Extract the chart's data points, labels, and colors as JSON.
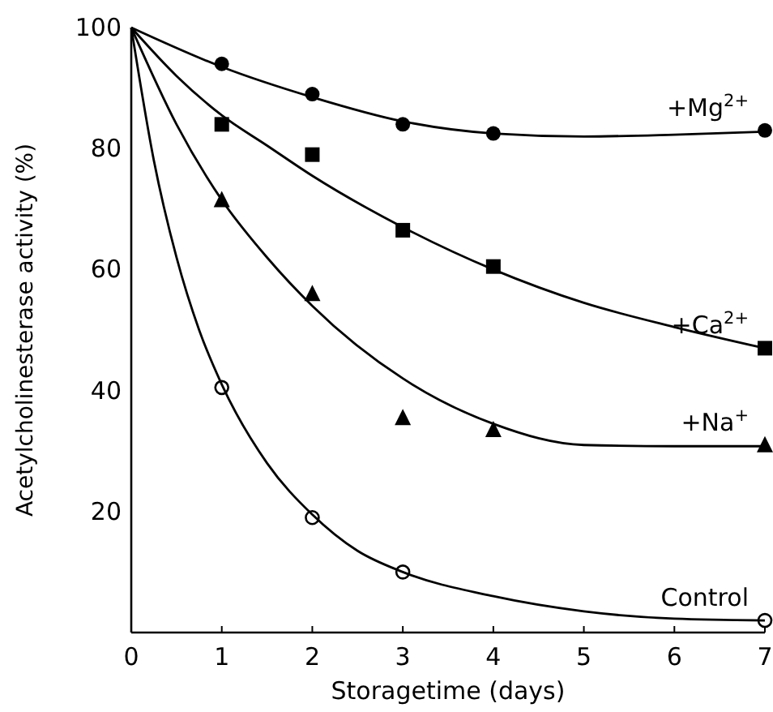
{
  "chart_data": {
    "type": "scatter",
    "xlabel": "Storagetime (days)",
    "ylabel": "Acetylcholinesterase activity (%)",
    "xlim": [
      0,
      7
    ],
    "ylim": [
      0,
      100
    ],
    "xticks": [
      0,
      1,
      2,
      3,
      4,
      5,
      6,
      7
    ],
    "yticks": [
      20,
      40,
      60,
      80,
      100
    ],
    "grid": false,
    "series": [
      {
        "name": "+Mg$^{2+}$",
        "color": "#000000",
        "marker": "circle",
        "x": [
          1,
          2,
          3,
          4,
          7
        ],
        "values": [
          94,
          89,
          84,
          82.5,
          83
        ]
      },
      {
        "name": "+Ca$^{2+}$",
        "color": "#000000",
        "marker": "square",
        "x": [
          1,
          2,
          3,
          4,
          7
        ],
        "values": [
          84,
          79,
          66.5,
          60.5,
          47
        ]
      },
      {
        "name": "+Na$^{+}$",
        "color": "#000000",
        "marker": "triangle",
        "x": [
          1,
          2,
          3,
          4,
          7
        ],
        "values": [
          71.5,
          56,
          35.5,
          33.5,
          31
        ]
      },
      {
        "name": "Control",
        "color": "#000000",
        "marker": "circle-open",
        "x": [
          1,
          2,
          3,
          7
        ],
        "values": [
          40.5,
          19,
          10,
          2
        ]
      },
      {
        "type": "line",
        "color": "#000000",
        "marker": "none",
        "x": [
          0,
          1,
          2,
          3,
          4,
          5,
          6,
          7
        ],
        "values": [
          100,
          93.5,
          88.5,
          84.5,
          82.5,
          82,
          82.3,
          82.8
        ]
      },
      {
        "type": "line",
        "color": "#000000",
        "marker": "none",
        "x": [
          0,
          0.5,
          1,
          1.5,
          2,
          3,
          4,
          5,
          6,
          7
        ],
        "values": [
          100,
          92,
          85.5,
          80.5,
          75.5,
          67,
          60,
          54.5,
          50.5,
          47
        ]
      },
      {
        "type": "line",
        "color": "#000000",
        "marker": "none",
        "x": [
          0,
          0.5,
          1,
          1.5,
          2,
          3,
          4,
          5,
          6,
          7
        ],
        "values": [
          100,
          84,
          71.5,
          62,
          54,
          42,
          34.5,
          31,
          30.8,
          30.8
        ]
      },
      {
        "type": "line",
        "color": "#000000",
        "marker": "none",
        "x": [
          0,
          0.25,
          0.5,
          0.75,
          1,
          1.5,
          2,
          2.5,
          3,
          4,
          5,
          6,
          7
        ],
        "values": [
          100,
          78,
          62,
          50,
          41,
          28,
          19.5,
          13.5,
          10,
          6,
          3.5,
          2.3,
          2
        ]
      }
    ]
  }
}
